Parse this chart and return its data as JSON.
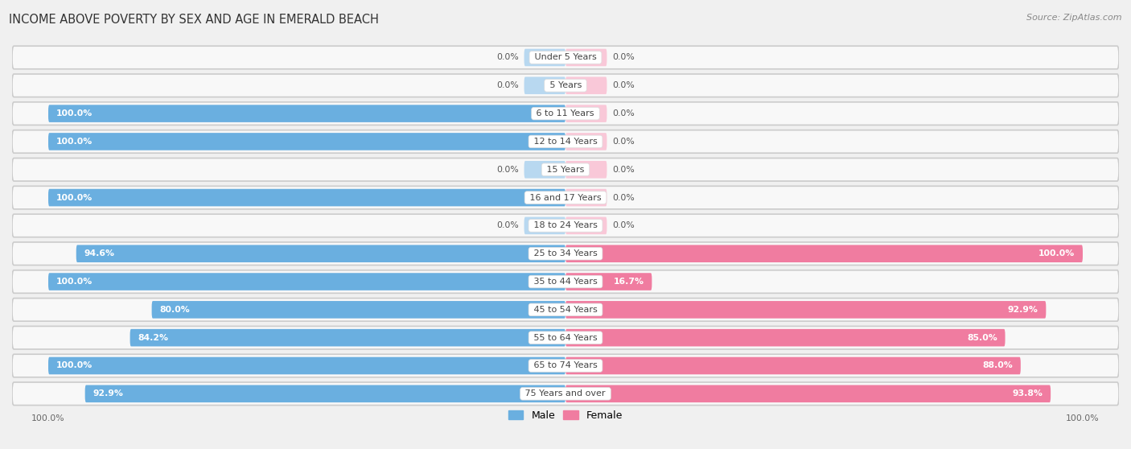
{
  "title": "INCOME ABOVE POVERTY BY SEX AND AGE IN EMERALD BEACH",
  "source": "Source: ZipAtlas.com",
  "categories": [
    "Under 5 Years",
    "5 Years",
    "6 to 11 Years",
    "12 to 14 Years",
    "15 Years",
    "16 and 17 Years",
    "18 to 24 Years",
    "25 to 34 Years",
    "35 to 44 Years",
    "45 to 54 Years",
    "55 to 64 Years",
    "65 to 74 Years",
    "75 Years and over"
  ],
  "male_values": [
    0.0,
    0.0,
    100.0,
    100.0,
    0.0,
    100.0,
    0.0,
    94.6,
    100.0,
    80.0,
    84.2,
    100.0,
    92.9
  ],
  "female_values": [
    0.0,
    0.0,
    0.0,
    0.0,
    0.0,
    0.0,
    0.0,
    100.0,
    16.7,
    92.9,
    85.0,
    88.0,
    93.8
  ],
  "male_color": "#6aafe0",
  "female_color": "#f07ca0",
  "male_color_light": "#b8d8f0",
  "female_color_light": "#f9c8d8",
  "row_bg_color": "#e8e8e8",
  "row_inner_color": "#f8f8f8",
  "bar_height": 0.62,
  "stub_value": 8.0,
  "max_value": 100.0,
  "title_fontsize": 10.5,
  "label_fontsize": 8.0,
  "value_fontsize": 7.8,
  "legend_fontsize": 9,
  "source_fontsize": 8,
  "background_color": "#f0f0f0"
}
